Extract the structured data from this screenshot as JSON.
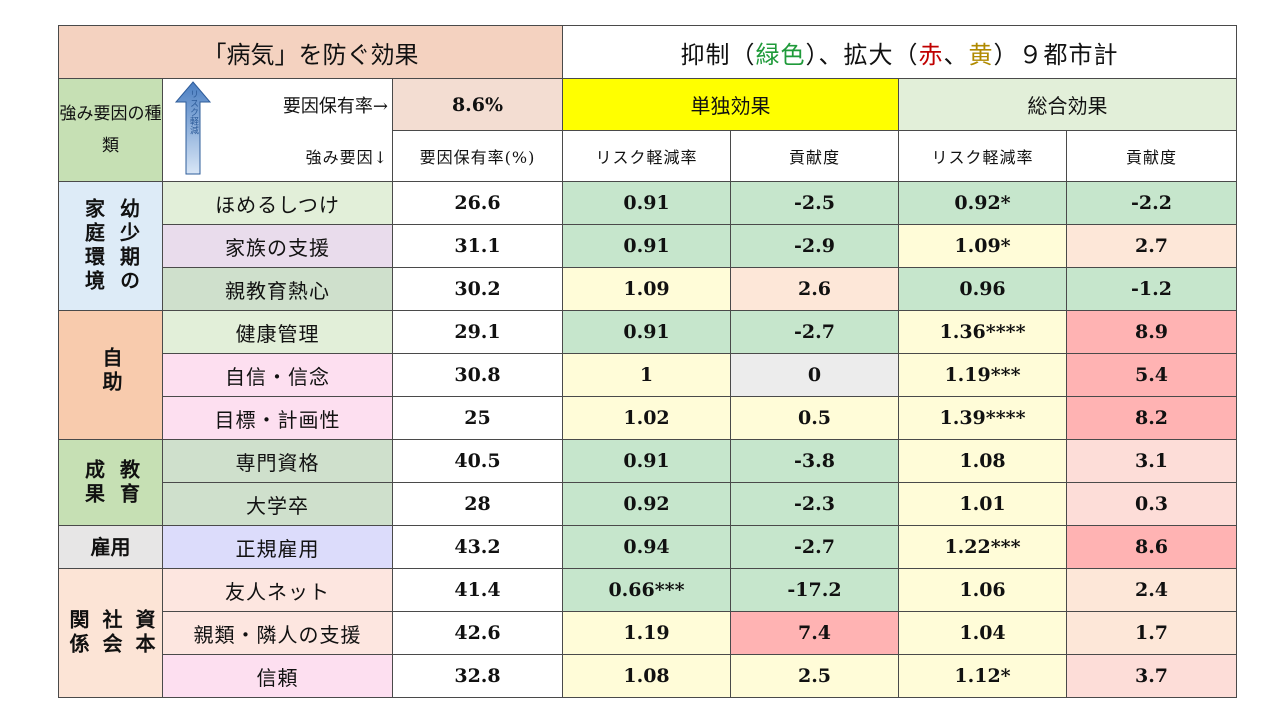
{
  "header": {
    "title_left": "「病気」を防ぐ効果",
    "title_right": {
      "prefix": "抑制（",
      "green": "緑色",
      "mid": "）、拡大（",
      "red": "赤",
      "sep": "、",
      "yellow": "黄",
      "suffix": "）９都市計"
    },
    "strength_kind": "強み要因の種類",
    "arrow_label": "リスク軽減",
    "rate_label": "要因保有率→",
    "rate_value": "8.6%",
    "single_effect": "単独効果",
    "total_effect": "総合効果",
    "strength_factor": "強み要因↓",
    "columns": [
      "要因保有率(%)",
      "リスク軽減率",
      "貢献度",
      "リスク軽減率",
      "貢献度"
    ]
  },
  "categories": [
    {
      "name": "家庭環境",
      "name2": "幼少期の"
    },
    {
      "name": "自助"
    },
    {
      "name": "成果",
      "name2": "教育"
    },
    {
      "name": "雇用"
    },
    {
      "name": "社会",
      "name2": "資本",
      "name3": "関係"
    }
  ],
  "rows": [
    {
      "factor": "ほめるしつけ",
      "rate": "26.6",
      "s_risk": "0.91",
      "s_contrib": "-2.5",
      "t_risk": "0.92*",
      "t_contrib": "-2.2"
    },
    {
      "factor": "家族の支援",
      "rate": "31.1",
      "s_risk": "0.91",
      "s_contrib": "-2.9",
      "t_risk": "1.09*",
      "t_contrib": "2.7"
    },
    {
      "factor": "親教育熱心",
      "rate": "30.2",
      "s_risk": "1.09",
      "s_contrib": "2.6",
      "t_risk": "0.96",
      "t_contrib": "-1.2"
    },
    {
      "factor": "健康管理",
      "rate": "29.1",
      "s_risk": "0.91",
      "s_contrib": "-2.7",
      "t_risk": "1.36****",
      "t_contrib": "8.9"
    },
    {
      "factor": "自信・信念",
      "rate": "30.8",
      "s_risk": "1",
      "s_contrib": "0",
      "t_risk": "1.19***",
      "t_contrib": "5.4"
    },
    {
      "factor": "目標・計画性",
      "rate": "25",
      "s_risk": "1.02",
      "s_contrib": "0.5",
      "t_risk": "1.39****",
      "t_contrib": "8.2"
    },
    {
      "factor": "専門資格",
      "rate": "40.5",
      "s_risk": "0.91",
      "s_contrib": "-3.8",
      "t_risk": "1.08",
      "t_contrib": "3.1"
    },
    {
      "factor": "大学卒",
      "rate": "28",
      "s_risk": "0.92",
      "s_contrib": "-2.3",
      "t_risk": "1.01",
      "t_contrib": "0.3"
    },
    {
      "factor": "正規雇用",
      "rate": "43.2",
      "s_risk": "0.94",
      "s_contrib": "-2.7",
      "t_risk": "1.22***",
      "t_contrib": "8.6"
    },
    {
      "factor": "友人ネット",
      "rate": "41.4",
      "s_risk": "0.66***",
      "s_contrib": "-17.2",
      "t_risk": "1.06",
      "t_contrib": "2.4"
    },
    {
      "factor": "親類・隣人の支援",
      "rate": "42.6",
      "s_risk": "1.19",
      "s_contrib": "7.4",
      "t_risk": "1.04",
      "t_contrib": "1.7"
    },
    {
      "factor": "信頼",
      "rate": "32.8",
      "s_risk": "1.08",
      "s_contrib": "2.5",
      "t_risk": "1.12*",
      "t_contrib": "3.7"
    }
  ],
  "colors": {
    "green": "#c6e6cc",
    "yellow": "#fffcd8",
    "red": "#ffb3b3",
    "orange": "#fde7d8",
    "pink": "#fdddd8",
    "grey": "#ececec"
  },
  "cell_colors": [
    [
      "green",
      "green",
      "green",
      "green"
    ],
    [
      "green",
      "green",
      "yellow",
      "orange"
    ],
    [
      "yellow",
      "orange",
      "green",
      "green"
    ],
    [
      "green",
      "green",
      "yellow",
      "red"
    ],
    [
      "yellow",
      "grey",
      "yellow",
      "red"
    ],
    [
      "yellow",
      "yellow",
      "yellow",
      "red"
    ],
    [
      "green",
      "green",
      "yellow",
      "pink"
    ],
    [
      "green",
      "green",
      "yellow",
      "pink"
    ],
    [
      "green",
      "green",
      "yellow",
      "red"
    ],
    [
      "green",
      "green",
      "yellow",
      "orange"
    ],
    [
      "yellow",
      "red",
      "yellow",
      "orange"
    ],
    [
      "yellow",
      "yellow",
      "yellow",
      "pink"
    ]
  ]
}
